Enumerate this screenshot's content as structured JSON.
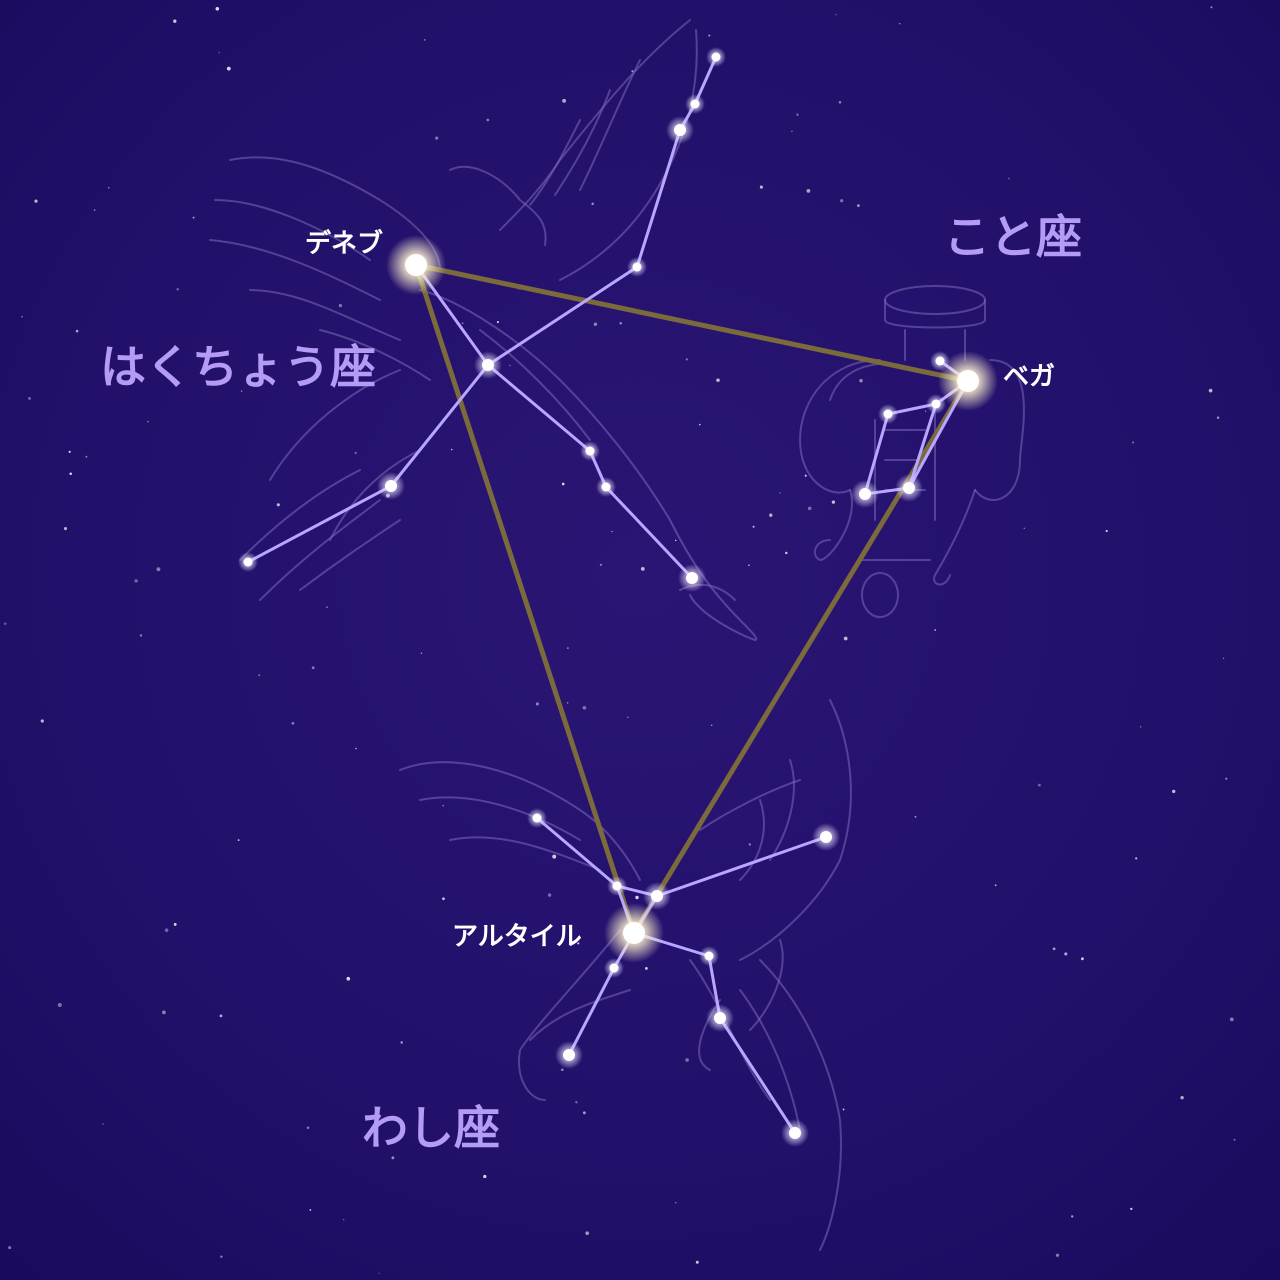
{
  "colors": {
    "sky_top": "#2a1272",
    "sky_mid": "#22106a",
    "sky_deep": "#1a0a5e",
    "constellation_line": "#b9a6ff",
    "triangle_line": "#7a6a3c",
    "outline": "#7c6ab8",
    "constellation_label": "#b49cf5",
    "star_label": "#ffffff",
    "star_core": "#ffffff",
    "star_glow": "#fff6d8"
  },
  "labels": {
    "cygnus": "はくちょう座",
    "lyra": "こと座",
    "aquila": "わし座",
    "deneb": "デネブ",
    "vega": "ベガ",
    "altair": "アルタイル"
  }
}
